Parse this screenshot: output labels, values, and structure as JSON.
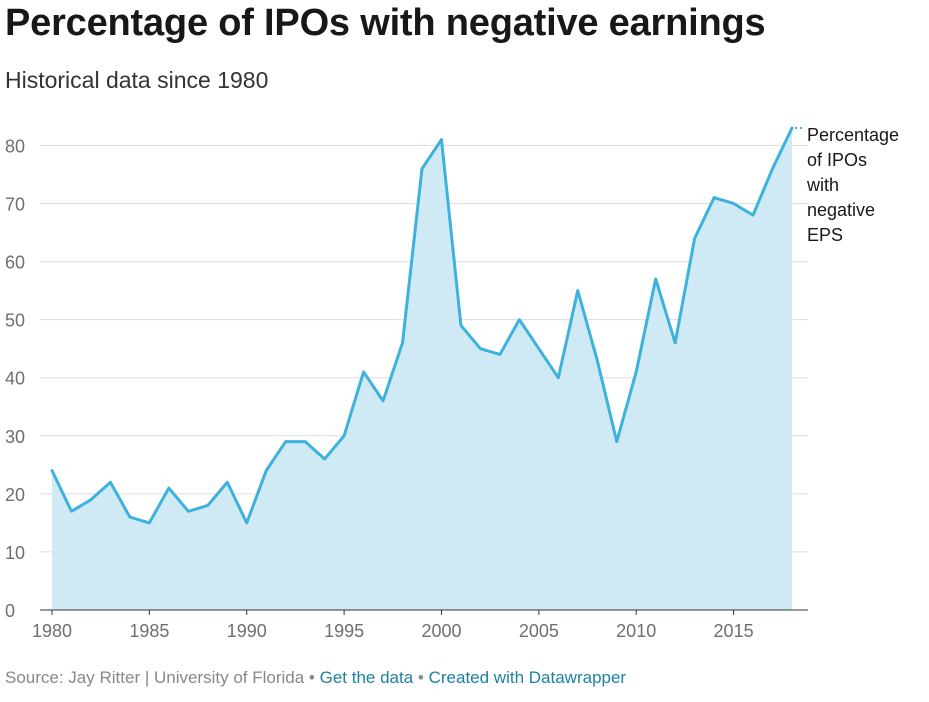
{
  "title": "Percentage of IPOs with negative earnings",
  "subtitle": "Historical data since 1980",
  "series_label_lines": [
    "Percentage",
    "of IPOs",
    "with",
    "negative",
    "EPS"
  ],
  "footer": {
    "source": "Source: Jay Ritter | University of Florida",
    "separator": "•",
    "get_data": "Get the data",
    "created_with": "Created with Datawrapper"
  },
  "colors": {
    "line": "#3eb1dc",
    "area": "#cfeaf4",
    "grid": "#dddddd",
    "axis_text": "#6f6f6f",
    "link": "#1d81a2"
  },
  "chart_data": {
    "type": "area",
    "title": "Percentage of IPOs with negative earnings",
    "subtitle": "Historical data since 1980",
    "xlabel": "",
    "ylabel": "",
    "xlim": [
      1980,
      2018
    ],
    "ylim": [
      0,
      83
    ],
    "x_ticks": [
      1980,
      1985,
      1990,
      1995,
      2000,
      2005,
      2010,
      2015
    ],
    "y_ticks": [
      0,
      10,
      20,
      30,
      40,
      50,
      60,
      70,
      80
    ],
    "grid": true,
    "legend": "direct label at right end of line",
    "x": [
      1980,
      1981,
      1982,
      1983,
      1984,
      1985,
      1986,
      1987,
      1988,
      1989,
      1990,
      1991,
      1992,
      1993,
      1994,
      1995,
      1996,
      1997,
      1998,
      1999,
      2000,
      2001,
      2002,
      2003,
      2004,
      2005,
      2006,
      2007,
      2008,
      2009,
      2010,
      2011,
      2012,
      2013,
      2014,
      2015,
      2016,
      2017,
      2018
    ],
    "series": [
      {
        "name": "Percentage of IPOs with negative EPS",
        "values": [
          24,
          17,
          19,
          22,
          16,
          15,
          21,
          17,
          18,
          22,
          15,
          24,
          29,
          29,
          26,
          30,
          41,
          36,
          46,
          76,
          81,
          49,
          45,
          44,
          50,
          45,
          40,
          55,
          43,
          29,
          41,
          57,
          46,
          64,
          71,
          70,
          68,
          76,
          83
        ]
      }
    ]
  }
}
